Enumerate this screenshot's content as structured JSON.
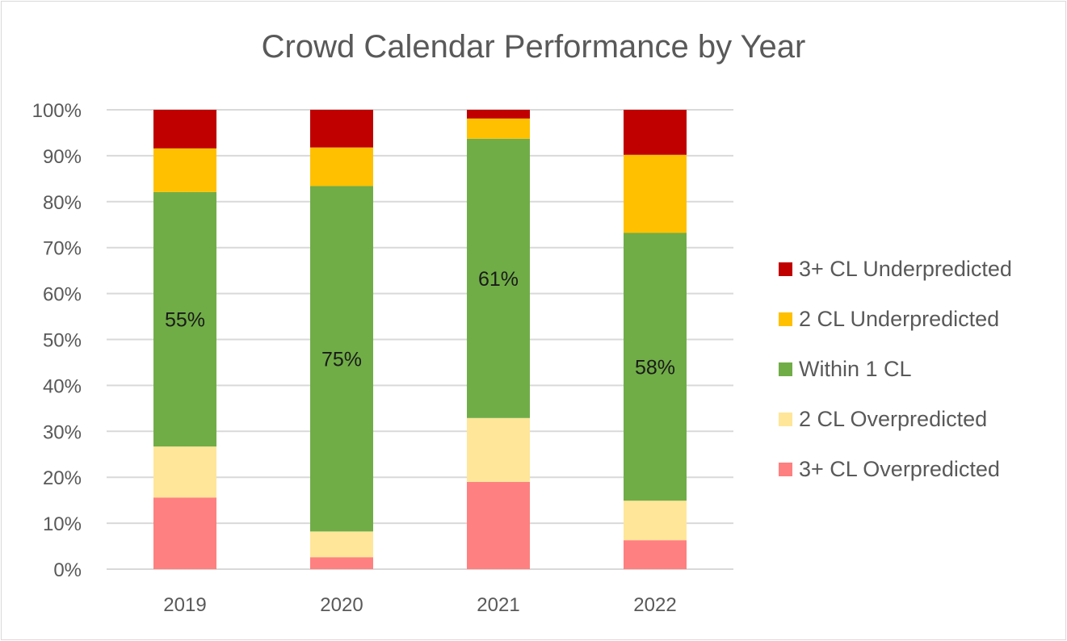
{
  "chart_data": {
    "type": "bar",
    "stacked": true,
    "title": "Crowd Calendar Performance by Year",
    "xlabel": "",
    "ylabel": "",
    "ylim": [
      0,
      100
    ],
    "y_ticks": [
      "0%",
      "10%",
      "20%",
      "30%",
      "40%",
      "50%",
      "60%",
      "70%",
      "80%",
      "90%",
      "100%"
    ],
    "grid": true,
    "legend_position": "right",
    "categories": [
      "2019",
      "2020",
      "2021",
      "2022"
    ],
    "series": [
      {
        "name": "3+ CL Overpredicted",
        "color": "#ff8080",
        "values": [
          15.6,
          2.6,
          19.0,
          6.3
        ]
      },
      {
        "name": "2 CL Overpredicted",
        "color": "#ffe699",
        "values": [
          11.1,
          5.6,
          13.9,
          8.6
        ]
      },
      {
        "name": "Within 1 CL",
        "color": "#70ad47",
        "values": [
          55.4,
          75.2,
          60.8,
          58.3
        ],
        "data_labels": [
          "55%",
          "75%",
          "61%",
          "58%"
        ]
      },
      {
        "name": "2 CL Underpredicted",
        "color": "#ffc000",
        "values": [
          9.5,
          8.4,
          4.4,
          17.0
        ]
      },
      {
        "name": "3+ CL Underpredicted",
        "color": "#c00000",
        "values": [
          8.4,
          8.2,
          1.9,
          9.8
        ]
      }
    ],
    "legend_order": [
      "3+ CL Underpredicted",
      "2 CL Underpredicted",
      "Within 1 CL",
      "2 CL Overpredicted",
      "3+ CL Overpredicted"
    ]
  }
}
